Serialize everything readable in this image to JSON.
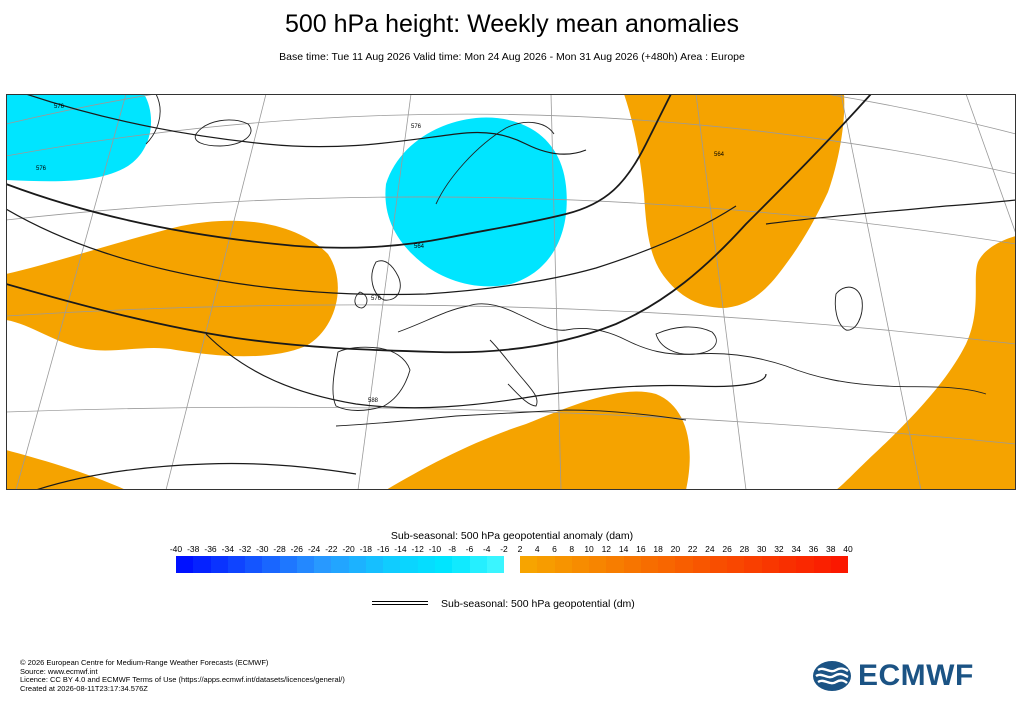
{
  "header": {
    "title": "500 hPa height: Weekly mean anomalies",
    "subtitle": "Base time: Tue 11 Aug 2026 Valid time: Mon 24 Aug 2026 - Mon 31 Aug 2026 (+480h) Area : Europe"
  },
  "map": {
    "contour_labels": [
      "576",
      "564",
      "576",
      "564",
      "588",
      "576",
      "576"
    ],
    "colors": {
      "negative_anomaly": "#00e5ff",
      "positive_anomaly": "#f5a300",
      "contour": "#1a1a1a",
      "coastline": "#222222",
      "graticule": "#9a9a9a"
    }
  },
  "colorbar": {
    "title": "Sub-seasonal: 500 hPa geopotential anomaly (dam)",
    "negative_ticks": [
      "-40",
      "-38",
      "-36",
      "-34",
      "-32",
      "-30",
      "-28",
      "-26",
      "-24",
      "-22",
      "-20",
      "-18",
      "-16",
      "-14",
      "-12",
      "-10",
      "-8",
      "-6",
      "-4",
      "-2"
    ],
    "positive_ticks": [
      "2",
      "4",
      "6",
      "8",
      "10",
      "12",
      "14",
      "16",
      "18",
      "20",
      "22",
      "24",
      "26",
      "28",
      "30",
      "32",
      "34",
      "36",
      "38",
      "40"
    ],
    "negative_colors": [
      "#0011ff",
      "#0522ff",
      "#0a33ff",
      "#0f44ff",
      "#1455ff",
      "#1966ff",
      "#1e77ff",
      "#2388ff",
      "#2899ff",
      "#22a5ff",
      "#1cb2ff",
      "#16bfff",
      "#10ccff",
      "#0ad5ff",
      "#05ddff",
      "#00e5ff",
      "#10eaff",
      "#25efff",
      "#3af5ff"
    ],
    "positive_colors": [
      "#f7a400",
      "#f79c00",
      "#f79400",
      "#f78c00",
      "#f78500",
      "#f77d00",
      "#f77500",
      "#f76d00",
      "#f86600",
      "#f85e00",
      "#f85600",
      "#f84e00",
      "#f94700",
      "#f93f00",
      "#f93700",
      "#f92f00",
      "#fa2800",
      "#fa2000",
      "#fb1800"
    ]
  },
  "legend": {
    "contour_label": "Sub-seasonal: 500 hPa geopotential (dm)"
  },
  "footer": {
    "lines": [
      "© 2026 European Centre for Medium-Range Weather Forecasts (ECMWF)",
      "Source: www.ecmwf.int",
      "Licence: CC BY 4.0 and ECMWF Terms of Use (https://apps.ecmwf.int/datasets/licences/general/)",
      "Created at 2026-08-11T23:17:34.576Z"
    ]
  },
  "logo": {
    "text": "ECMWF",
    "icon": "ecmwf-logo-icon",
    "color": "#1b5384"
  }
}
